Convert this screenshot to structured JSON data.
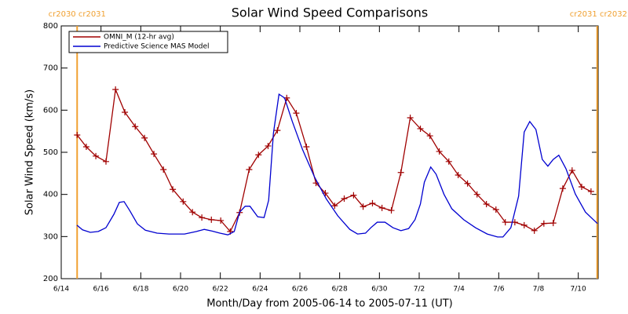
{
  "chart_data": {
    "type": "line",
    "title": "Solar Wind Speed Comparisons",
    "x_label": "Month/Day from 2005-06-14 to 2005-07-11 (UT)",
    "y_label": "Solar Wind Speed (km/s)",
    "xlim": [
      0,
      27
    ],
    "xticks": [
      {
        "value": 0,
        "label": "6/14"
      },
      {
        "value": 2,
        "label": "6/16"
      },
      {
        "value": 4,
        "label": "6/18"
      },
      {
        "value": 6,
        "label": "6/20"
      },
      {
        "value": 8,
        "label": "6/22"
      },
      {
        "value": 10,
        "label": "6/24"
      },
      {
        "value": 12,
        "label": "6/26"
      },
      {
        "value": 14,
        "label": "6/28"
      },
      {
        "value": 16,
        "label": "6/30"
      },
      {
        "value": 18,
        "label": "7/2"
      },
      {
        "value": 20,
        "label": "7/4"
      },
      {
        "value": 22,
        "label": "7/6"
      },
      {
        "value": 24,
        "label": "7/8"
      },
      {
        "value": 26,
        "label": "7/10"
      }
    ],
    "ylim": [
      200,
      800
    ],
    "yticks": [
      200,
      300,
      400,
      500,
      600,
      700,
      800
    ],
    "legend": "upper left",
    "boundaries": [
      {
        "x": 0.8,
        "label": "cr2030 cr2031",
        "color": "#f0a030"
      },
      {
        "x": 26.95,
        "label": "cr2031 cr2032",
        "color": "#f0a030"
      }
    ],
    "series": [
      {
        "name": "OMNI_M (12-hr avg)",
        "color": "#a00000",
        "marker": "+",
        "x": [
          0.8,
          1.26,
          1.74,
          2.25,
          2.73,
          3.2,
          3.72,
          4.19,
          4.66,
          5.14,
          5.61,
          6.13,
          6.6,
          7.07,
          7.55,
          8.02,
          8.5,
          8.97,
          9.45,
          9.92,
          10.4,
          10.87,
          11.34,
          11.82,
          12.33,
          12.81,
          13.28,
          13.75,
          14.23,
          14.7,
          15.18,
          15.65,
          16.13,
          16.6,
          17.08,
          17.55,
          18.06,
          18.54,
          19.01,
          19.49,
          19.96,
          20.43,
          20.91,
          21.38,
          21.86,
          22.33,
          22.81,
          23.28,
          23.79,
          24.27,
          24.74,
          25.22,
          25.69,
          26.17,
          26.64
        ],
        "values": [
          541,
          513,
          491,
          478,
          649,
          595,
          561,
          534,
          496,
          459,
          412,
          383,
          358,
          345,
          340,
          338,
          312,
          357,
          459,
          494,
          515,
          552,
          629,
          593,
          513,
          427,
          403,
          373,
          390,
          398,
          371,
          379,
          368,
          362,
          452,
          582,
          556,
          539,
          502,
          478,
          446,
          426,
          400,
          377,
          364,
          334,
          334,
          327,
          314,
          331,
          332,
          414,
          457,
          418,
          407
        ]
      },
      {
        "name": "Predictive Science MAS Model",
        "color": "#0000d0",
        "marker": null,
        "x": [
          0.79,
          1.07,
          1.46,
          1.86,
          2.25,
          2.65,
          2.92,
          3.16,
          3.44,
          3.83,
          4.23,
          4.82,
          5.42,
          6.2,
          6.8,
          7.19,
          7.59,
          7.98,
          8.38,
          8.7,
          8.97,
          9.25,
          9.49,
          9.88,
          10.2,
          10.43,
          10.67,
          10.95,
          11.23,
          11.62,
          12.13,
          12.73,
          13.32,
          13.91,
          14.51,
          14.9,
          15.3,
          15.57,
          15.89,
          16.28,
          16.68,
          17.08,
          17.47,
          17.79,
          18.06,
          18.26,
          18.58,
          18.85,
          19.25,
          19.64,
          20.24,
          20.83,
          21.42,
          21.94,
          22.21,
          22.61,
          23.0,
          23.28,
          23.56,
          23.87,
          24.19,
          24.47,
          24.74,
          25.02,
          25.38,
          25.85,
          26.36,
          26.96
        ],
        "values": [
          327,
          316,
          310,
          312,
          321,
          353,
          381,
          383,
          362,
          330,
          315,
          308,
          306,
          306,
          312,
          317,
          313,
          308,
          304,
          312,
          358,
          372,
          372,
          347,
          345,
          386,
          545,
          638,
          629,
          573,
          507,
          442,
          390,
          349,
          317,
          306,
          308,
          321,
          334,
          334,
          321,
          314,
          319,
          340,
          377,
          429,
          465,
          448,
          400,
          366,
          340,
          321,
          306,
          299,
          299,
          321,
          396,
          548,
          573,
          554,
          483,
          467,
          483,
          493,
          461,
          401,
          358,
          331
        ]
      }
    ]
  }
}
